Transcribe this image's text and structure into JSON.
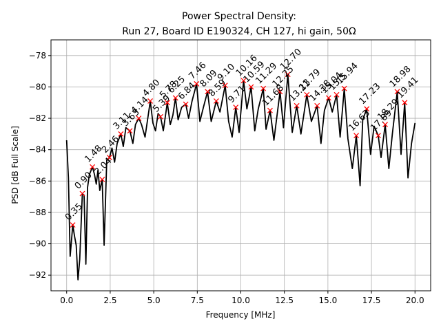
{
  "chart_data": {
    "type": "line",
    "title_line1": "Power Spectral Density:",
    "title_line2": "Run 27, Board ID E190324, CH 127, hi gain, 50Ω",
    "xlabel": "Frequency [MHz]",
    "ylabel": "PSD [dB Full Scale]",
    "xlim": [
      -0.9,
      20.9
    ],
    "ylim": [
      -93.0,
      -77.0
    ],
    "grid": true,
    "x_ticks": [
      0.0,
      2.5,
      5.0,
      7.5,
      10.0,
      12.5,
      15.0,
      17.5,
      20.0
    ],
    "x_tick_labels": [
      "0.0",
      "2.5",
      "5.0",
      "7.5",
      "10.0",
      "12.5",
      "15.0",
      "17.5",
      "20.0"
    ],
    "y_ticks": [
      -92,
      -90,
      -88,
      -86,
      -84,
      -82,
      -80,
      -78
    ],
    "y_tick_labels": [
      "−92",
      "−90",
      "−88",
      "−86",
      "−84",
      "−82",
      "−80",
      "−78"
    ],
    "series": [
      {
        "color": "#000000",
        "x": [
          0.0,
          0.1,
          0.2,
          0.3,
          0.35,
          0.45,
          0.55,
          0.65,
          0.75,
          0.9,
          1.0,
          1.1,
          1.2,
          1.3,
          1.48,
          1.6,
          1.7,
          1.8,
          1.9,
          2.04,
          2.15,
          2.3,
          2.46,
          2.6,
          2.75,
          2.9,
          3.11,
          3.25,
          3.4,
          3.63,
          3.8,
          3.95,
          4.14,
          4.3,
          4.5,
          4.8,
          4.95,
          5.1,
          5.25,
          5.39,
          5.55,
          5.78,
          5.95,
          6.1,
          6.25,
          6.4,
          6.6,
          6.84,
          7.0,
          7.2,
          7.46,
          7.65,
          7.85,
          8.09,
          8.3,
          8.59,
          8.8,
          9.1,
          9.3,
          9.5,
          9.71,
          9.9,
          10.16,
          10.35,
          10.59,
          10.8,
          11.0,
          11.29,
          11.45,
          11.68,
          11.9,
          12.25,
          12.45,
          12.7,
          12.95,
          13.21,
          13.45,
          13.79,
          14.05,
          14.38,
          14.6,
          14.8,
          15.04,
          15.25,
          15.5,
          15.7,
          15.94,
          16.15,
          16.4,
          16.63,
          16.85,
          17.0,
          17.23,
          17.45,
          17.65,
          17.89,
          18.05,
          18.29,
          18.5,
          18.7,
          18.98,
          19.2,
          19.41,
          19.6,
          19.8,
          20.0
        ],
        "values": [
          -83.4,
          -85.8,
          -90.8,
          -89.5,
          -88.8,
          -89.5,
          -90.1,
          -92.3,
          -91.0,
          -86.8,
          -86.9,
          -91.3,
          -86.4,
          -85.6,
          -85.1,
          -85.6,
          -86.2,
          -85.3,
          -86.6,
          -85.9,
          -90.1,
          -84.7,
          -84.5,
          -83.9,
          -84.8,
          -83.6,
          -83.0,
          -83.8,
          -82.6,
          -82.8,
          -83.6,
          -82.4,
          -82.0,
          -82.4,
          -83.2,
          -80.9,
          -82.3,
          -82.8,
          -81.7,
          -81.9,
          -82.8,
          -81.0,
          -82.4,
          -81.8,
          -80.7,
          -82.1,
          -81.3,
          -81.1,
          -82.0,
          -80.9,
          -79.8,
          -82.2,
          -81.3,
          -80.3,
          -82.2,
          -80.9,
          -81.6,
          -79.9,
          -82.2,
          -83.2,
          -81.3,
          -82.9,
          -79.6,
          -81.4,
          -80.0,
          -82.8,
          -81.4,
          -80.1,
          -82.7,
          -81.5,
          -83.4,
          -80.3,
          -82.6,
          -79.2,
          -82.9,
          -81.2,
          -83.0,
          -80.5,
          -82.2,
          -81.2,
          -83.6,
          -81.5,
          -80.7,
          -81.6,
          -80.5,
          -83.2,
          -80.1,
          -83.3,
          -85.2,
          -83.1,
          -86.3,
          -82.1,
          -81.4,
          -84.3,
          -82.5,
          -83.1,
          -84.5,
          -82.4,
          -85.2,
          -83.0,
          -80.3,
          -84.3,
          -81.0,
          -85.8,
          -83.6,
          -82.3
        ]
      }
    ],
    "peaks": [
      {
        "x": 0.35,
        "y": -88.8,
        "label": "0.35"
      },
      {
        "x": 0.9,
        "y": -86.8,
        "label": "0.90"
      },
      {
        "x": 1.48,
        "y": -85.1,
        "label": "1.48"
      },
      {
        "x": 2.04,
        "y": -85.9,
        "label": "2.04"
      },
      {
        "x": 2.46,
        "y": -84.5,
        "label": "2.46"
      },
      {
        "x": 3.11,
        "y": -83.0,
        "label": "3.11"
      },
      {
        "x": 3.63,
        "y": -82.8,
        "label": "3.63"
      },
      {
        "x": 4.14,
        "y": -82.0,
        "label": "4.14"
      },
      {
        "x": 4.8,
        "y": -80.9,
        "label": "4.80"
      },
      {
        "x": 5.39,
        "y": -81.9,
        "label": "5.39"
      },
      {
        "x": 5.78,
        "y": -81.0,
        "label": "5.78"
      },
      {
        "x": 6.25,
        "y": -80.7,
        "label": "6.25"
      },
      {
        "x": 6.84,
        "y": -81.1,
        "label": "6.84"
      },
      {
        "x": 7.46,
        "y": -79.8,
        "label": "7.46"
      },
      {
        "x": 8.09,
        "y": -80.3,
        "label": "8.09"
      },
      {
        "x": 8.59,
        "y": -80.9,
        "label": "8.59"
      },
      {
        "x": 9.1,
        "y": -79.9,
        "label": "9.10"
      },
      {
        "x": 9.71,
        "y": -81.3,
        "label": "9.71"
      },
      {
        "x": 10.16,
        "y": -79.6,
        "label": "10.16"
      },
      {
        "x": 10.59,
        "y": -80.0,
        "label": "10.59"
      },
      {
        "x": 11.29,
        "y": -80.1,
        "label": "11.29"
      },
      {
        "x": 11.68,
        "y": -81.5,
        "label": "11.68"
      },
      {
        "x": 12.25,
        "y": -80.3,
        "label": "12.25"
      },
      {
        "x": 12.7,
        "y": -79.2,
        "label": "12.70"
      },
      {
        "x": 13.21,
        "y": -81.2,
        "label": "13.21"
      },
      {
        "x": 13.79,
        "y": -80.5,
        "label": "13.79"
      },
      {
        "x": 14.38,
        "y": -81.2,
        "label": "14.38"
      },
      {
        "x": 15.04,
        "y": -80.7,
        "label": "15.04"
      },
      {
        "x": 15.5,
        "y": -80.5,
        "label": "15.5"
      },
      {
        "x": 15.94,
        "y": -80.1,
        "label": "15.94"
      },
      {
        "x": 16.63,
        "y": -83.1,
        "label": "16.63"
      },
      {
        "x": 17.23,
        "y": -81.4,
        "label": "17.23"
      },
      {
        "x": 17.89,
        "y": -83.1,
        "label": "17.89"
      },
      {
        "x": 18.29,
        "y": -82.4,
        "label": "18.29"
      },
      {
        "x": 18.98,
        "y": -80.3,
        "label": "18.98"
      },
      {
        "x": 19.41,
        "y": -81.0,
        "label": "19.41"
      }
    ]
  },
  "colors": {
    "line": "#000000",
    "marker": "#ff0000",
    "grid": "#b0b0b0",
    "axes": "#000000",
    "background": "#ffffff"
  }
}
